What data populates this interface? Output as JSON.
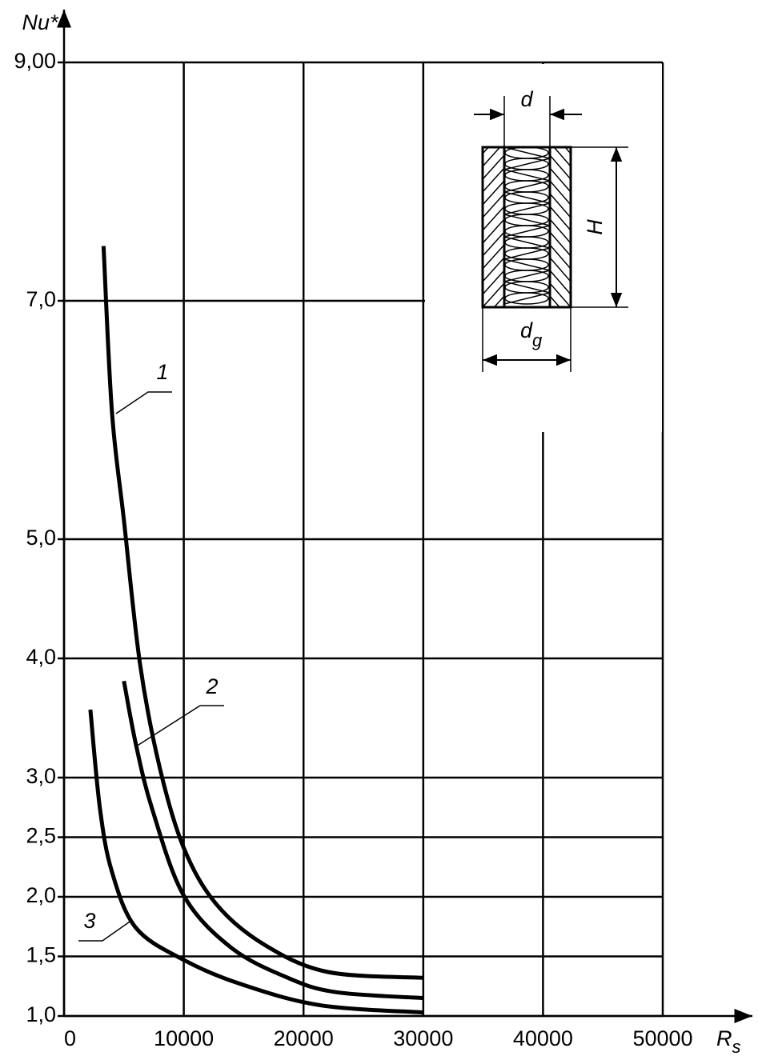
{
  "chart_data": {
    "type": "line",
    "y_label": "Nu*",
    "x_label": {
      "main": "R",
      "sub": "s"
    },
    "xlim": [
      0,
      50000
    ],
    "xticks": [
      0,
      10000,
      20000,
      30000,
      40000,
      50000
    ],
    "ylim": [
      1,
      9
    ],
    "yticks": [
      {
        "value": 1,
        "label": "1,0"
      },
      {
        "value": 1.5,
        "label": "1,5"
      },
      {
        "value": 2,
        "label": "2,0"
      },
      {
        "value": 2.5,
        "label": "2,5"
      },
      {
        "value": 3,
        "label": "3,0"
      },
      {
        "value": 4,
        "label": "4,0"
      },
      {
        "value": 5,
        "label": "5,0"
      },
      {
        "value": 7,
        "label": "7,0"
      },
      {
        "value": 9,
        "label": "9,00"
      }
    ],
    "grid": true,
    "series": [
      {
        "name": "1",
        "color": "#000000",
        "x": [
          3300,
          4000,
          5000,
          6350,
          8000,
          10000,
          12700,
          16700,
          22000,
          30000
        ],
        "values": [
          7.46,
          6.07,
          5.16,
          3.95,
          3.08,
          2.41,
          1.94,
          1.6,
          1.37,
          1.32
        ]
      },
      {
        "name": "2",
        "color": "#000000",
        "x": [
          5000,
          6000,
          7350,
          10000,
          14000,
          18700,
          22700,
          30000
        ],
        "values": [
          3.81,
          3.28,
          2.74,
          2.01,
          1.57,
          1.32,
          1.2,
          1.15
        ]
      },
      {
        "name": "3",
        "color": "#000000",
        "x": [
          2200,
          3000,
          4000,
          6000,
          10000,
          14700,
          21400,
          30000
        ],
        "values": [
          3.57,
          2.74,
          2.21,
          1.74,
          1.47,
          1.27,
          1.09,
          1.03
        ]
      }
    ],
    "inset": {
      "d": "d",
      "dg": {
        "main": "d",
        "sub": "g"
      },
      "H": "H"
    }
  }
}
